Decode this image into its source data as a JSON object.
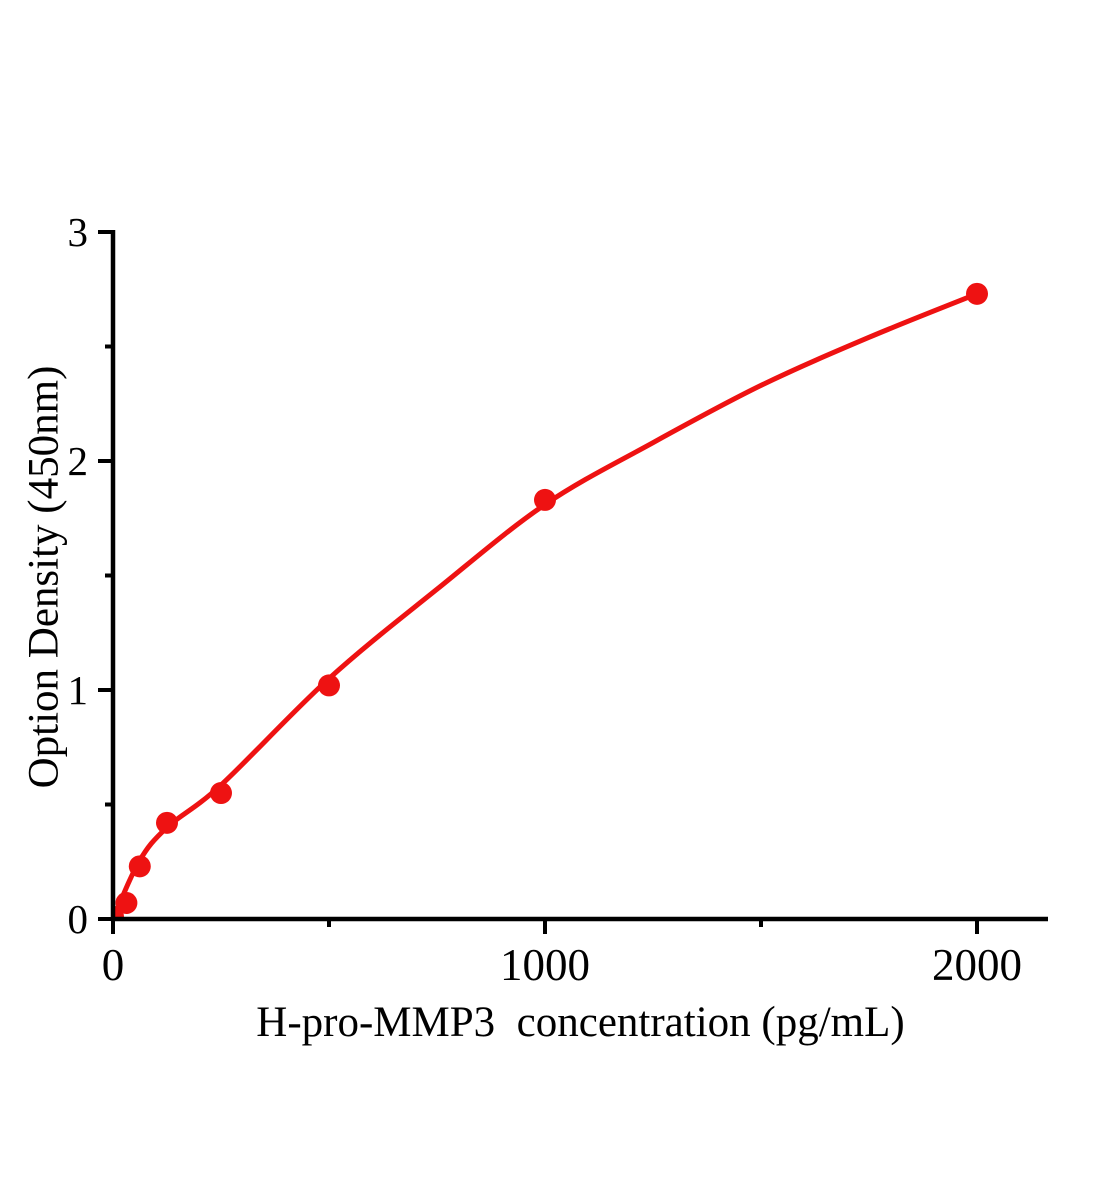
{
  "figure": {
    "background": "#ffffff",
    "text_color": "#000000"
  },
  "chart_data": {
    "type": "scatter",
    "title": "",
    "xlabel": "H-pro-MMP3  concentration (pg/mL)",
    "ylabel": "Option Density (450nm)",
    "xlim": [
      0,
      2165
    ],
    "ylim": [
      0,
      3
    ],
    "grid": false,
    "legend": null,
    "x_ticks": [
      {
        "value": 0,
        "label": "0"
      },
      {
        "value": 1000,
        "label": "1000"
      },
      {
        "value": 2000,
        "label": "2000"
      }
    ],
    "x_minor_ticks": [
      500,
      1500
    ],
    "y_ticks": [
      {
        "value": 0,
        "label": "0"
      },
      {
        "value": 1,
        "label": "1"
      },
      {
        "value": 2,
        "label": "2"
      },
      {
        "value": 3,
        "label": "3"
      }
    ],
    "y_minor_ticks": [
      0.5,
      1.5,
      2.5
    ],
    "series": [
      {
        "color": "#ee1212",
        "marker": "circle",
        "points": [
          {
            "x": 0,
            "y": 0.01
          },
          {
            "x": 31,
            "y": 0.07
          },
          {
            "x": 62,
            "y": 0.23
          },
          {
            "x": 125,
            "y": 0.42
          },
          {
            "x": 250,
            "y": 0.55
          },
          {
            "x": 500,
            "y": 1.02
          },
          {
            "x": 1000,
            "y": 1.83
          },
          {
            "x": 2000,
            "y": 2.73
          }
        ],
        "fit_curve": [
          [
            0,
            0
          ],
          [
            60,
            0.25
          ],
          [
            125,
            0.4
          ],
          [
            250,
            0.585
          ],
          [
            500,
            1.05
          ],
          [
            750,
            1.44
          ],
          [
            1000,
            1.81
          ],
          [
            1250,
            2.08
          ],
          [
            1500,
            2.33
          ],
          [
            1750,
            2.54
          ],
          [
            2000,
            2.73
          ]
        ]
      }
    ]
  }
}
